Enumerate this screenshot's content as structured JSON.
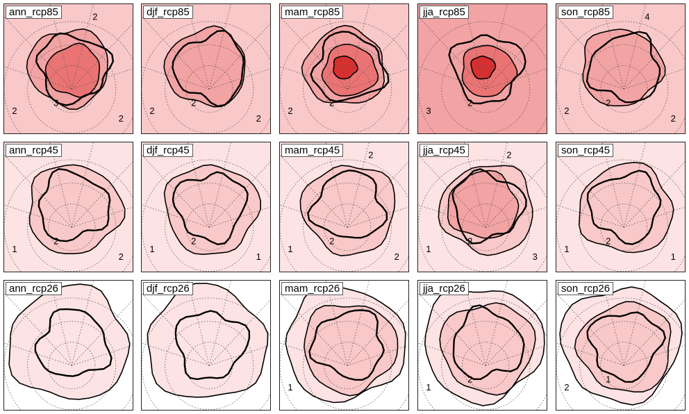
{
  "figure": {
    "legend": "none",
    "colors": {
      "level_0": "#ffffff",
      "level_1": "#fde3e3",
      "level_2": "#f9c8c8",
      "level_3": "#f2a3a3",
      "level_4": "#ea7474",
      "level_5": "#d83030",
      "contour_line": "#000000",
      "grid_line": "#555555"
    },
    "rows": [
      {
        "panels": [
          {
            "id": "ann_rcp85",
            "label": "ann_rcp85",
            "levels": [
              2,
              3,
              4
            ],
            "contour_labels": [
              "2",
              "3",
              "2",
              "2"
            ]
          },
          {
            "id": "djf_rcp85",
            "label": "djf_rcp85",
            "levels": [
              2,
              3
            ],
            "contour_labels": [
              "2",
              "2",
              "2"
            ]
          },
          {
            "id": "mam_rcp85",
            "label": "mam_rcp85",
            "levels": [
              2,
              3,
              4,
              5
            ],
            "contour_labels": [
              "2",
              "2"
            ]
          },
          {
            "id": "jja_rcp85",
            "label": "jja_rcp85",
            "levels": [
              3,
              4,
              5
            ],
            "contour_labels": [
              "3",
              "2"
            ]
          },
          {
            "id": "son_rcp85",
            "label": "son_rcp85",
            "levels": [
              2,
              3
            ],
            "contour_labels": [
              "2",
              "2",
              "2",
              "4"
            ]
          }
        ]
      },
      {
        "panels": [
          {
            "id": "ann_rcp45",
            "label": "ann_rcp45",
            "levels": [
              1,
              2
            ],
            "contour_labels": [
              "1",
              "2",
              "2"
            ]
          },
          {
            "id": "djf_rcp45",
            "label": "djf_rcp45",
            "levels": [
              1,
              2
            ],
            "contour_labels": [
              "1",
              "2",
              "1"
            ]
          },
          {
            "id": "mam_rcp45",
            "label": "mam_rcp45",
            "levels": [
              1,
              2
            ],
            "contour_labels": [
              "1",
              "2",
              "2",
              "2"
            ]
          },
          {
            "id": "jja_rcp45",
            "label": "jja_rcp45",
            "levels": [
              1,
              2,
              3
            ],
            "contour_labels": [
              "1",
              "2",
              "3",
              "2"
            ]
          },
          {
            "id": "son_rcp45",
            "label": "son_rcp45",
            "levels": [
              1,
              2
            ],
            "contour_labels": [
              "1",
              "2",
              "1"
            ]
          }
        ]
      },
      {
        "panels": [
          {
            "id": "ann_rcp26",
            "label": "ann_rcp26",
            "levels": [
              1
            ],
            "contour_labels": []
          },
          {
            "id": "djf_rcp26",
            "label": "djf_rcp26",
            "levels": [
              1
            ],
            "contour_labels": []
          },
          {
            "id": "mam_rcp26",
            "label": "mam_rcp26",
            "levels": [
              1,
              2
            ],
            "contour_labels": [
              "1"
            ]
          },
          {
            "id": "jja_rcp26",
            "label": "jja_rcp26",
            "levels": [
              1,
              2
            ],
            "contour_labels": [
              "1",
              "2"
            ]
          },
          {
            "id": "son_rcp26",
            "label": "son_rcp26",
            "levels": [
              1,
              2
            ],
            "contour_labels": [
              "2",
              "1"
            ]
          }
        ]
      }
    ]
  }
}
